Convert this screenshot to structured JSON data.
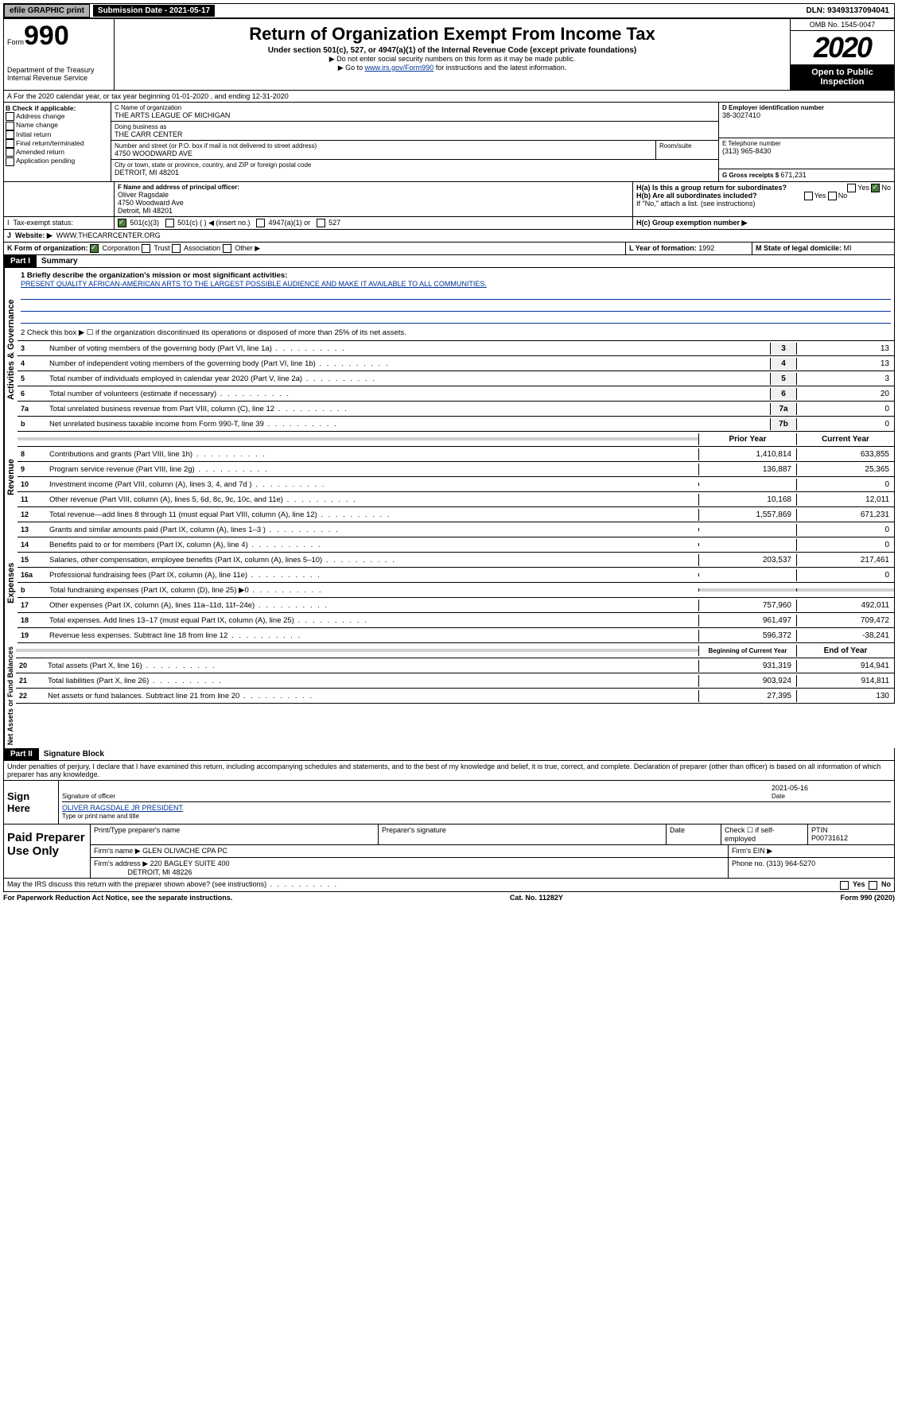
{
  "top": {
    "efile": "efile GRAPHIC print",
    "subDate": "Submission Date - 2021-05-17",
    "dln": "DLN: 93493137094041"
  },
  "header": {
    "formWord": "Form",
    "formNum": "990",
    "dept": "Department of the Treasury\nInternal Revenue Service",
    "title": "Return of Organization Exempt From Income Tax",
    "sub": "Under section 501(c), 527, or 4947(a)(1) of the Internal Revenue Code (except private foundations)",
    "note1": "▶ Do not enter social security numbers on this form as it may be made public.",
    "note2a": "▶ Go to ",
    "note2link": "www.irs.gov/Form990",
    "note2b": " for instructions and the latest information.",
    "omb": "OMB No. 1545-0047",
    "year": "2020",
    "openPub": "Open to Public Inspection"
  },
  "periodA": "A For the 2020 calendar year, or tax year beginning 01-01-2020   , and ending 12-31-2020",
  "boxB": {
    "title": "B Check if applicable:",
    "items": [
      "Address change",
      "Name change",
      "Initial return",
      "Final return/terminated",
      "Amended return",
      "Application pending"
    ]
  },
  "boxC": {
    "nameLbl": "C Name of organization",
    "name": "THE ARTS LEAGUE OF MICHIGAN",
    "dbaLbl": "Doing business as",
    "dba": "THE CARR CENTER",
    "addrLbl": "Number and street (or P.O. box if mail is not delivered to street address)",
    "roomLbl": "Room/suite",
    "addr": "4750 WOODWARD AVE",
    "cityLbl": "City or town, state or province, country, and ZIP or foreign postal code",
    "city": "DETROIT, MI  48201"
  },
  "boxD": {
    "lbl": "D Employer identification number",
    "val": "38-3027410"
  },
  "boxE": {
    "lbl": "E Telephone number",
    "val": "(313) 965-8430"
  },
  "boxG": {
    "lbl": "G Gross receipts $ ",
    "val": "671,231"
  },
  "boxF": {
    "lbl": "F Name and address of principal officer:",
    "name": "Oliver Ragsdale",
    "addr": "4750 Woodward Ave",
    "city": "Detroit, MI  48201"
  },
  "boxH": {
    "ha": "H(a)  Is this a group return for subordinates?",
    "hb": "H(b)  Are all subordinates included?",
    "hbNote": "If \"No,\" attach a list. (see instructions)",
    "hc": "H(c)  Group exemption number ▶",
    "yes": "Yes",
    "no": "No"
  },
  "boxI": {
    "lbl": "Tax-exempt status:",
    "opts": [
      "501(c)(3)",
      "501(c) (  ) ◀ (insert no.)",
      "4947(a)(1) or",
      "527"
    ]
  },
  "boxJ": {
    "lbl": "Website: ▶",
    "val": "WWW.THECARRCENTER.ORG"
  },
  "boxK": {
    "lbl": "K Form of organization:",
    "opts": [
      "Corporation",
      "Trust",
      "Association",
      "Other ▶"
    ]
  },
  "boxL": {
    "lbl": "L Year of formation: ",
    "val": "1992"
  },
  "boxM": {
    "lbl": "M State of legal domicile: ",
    "val": "MI"
  },
  "part1": {
    "hdr": "Part I",
    "title": "Summary",
    "l1lbl": "1  Briefly describe the organization's mission or most significant activities:",
    "l1val": "PRESENT QUALITY AFRICAN-AMERICAN ARTS TO THE LARGEST POSSIBLE AUDIENCE AND MAKE IT AVAILABLE TO ALL COMMUNITIES.",
    "l2": "2   Check this box ▶ ☐  if the organization discontinued its operations or disposed of more than 25% of its net assets."
  },
  "vert": {
    "gov": "Activities & Governance",
    "rev": "Revenue",
    "exp": "Expenses",
    "net": "Net Assets or Fund Balances"
  },
  "govLines": [
    {
      "n": "3",
      "t": "Number of voting members of the governing body (Part VI, line 1a)",
      "b": "3",
      "v": "13"
    },
    {
      "n": "4",
      "t": "Number of independent voting members of the governing body (Part VI, line 1b)",
      "b": "4",
      "v": "13"
    },
    {
      "n": "5",
      "t": "Total number of individuals employed in calendar year 2020 (Part V, line 2a)",
      "b": "5",
      "v": "3"
    },
    {
      "n": "6",
      "t": "Total number of volunteers (estimate if necessary)",
      "b": "6",
      "v": "20"
    },
    {
      "n": "7a",
      "t": "Total unrelated business revenue from Part VIII, column (C), line 12",
      "b": "7a",
      "v": "0"
    },
    {
      "n": "b",
      "t": "Net unrelated business taxable income from Form 990-T, line 39",
      "b": "7b",
      "v": "0"
    }
  ],
  "colHdr": {
    "prior": "Prior Year",
    "curr": "Current Year"
  },
  "revLines": [
    {
      "n": "8",
      "t": "Contributions and grants (Part VIII, line 1h)",
      "p": "1,410,814",
      "c": "633,855"
    },
    {
      "n": "9",
      "t": "Program service revenue (Part VIII, line 2g)",
      "p": "136,887",
      "c": "25,365"
    },
    {
      "n": "10",
      "t": "Investment income (Part VIII, column (A), lines 3, 4, and 7d )",
      "p": "",
      "c": "0"
    },
    {
      "n": "11",
      "t": "Other revenue (Part VIII, column (A), lines 5, 6d, 8c, 9c, 10c, and 11e)",
      "p": "10,168",
      "c": "12,011"
    },
    {
      "n": "12",
      "t": "Total revenue—add lines 8 through 11 (must equal Part VIII, column (A), line 12)",
      "p": "1,557,869",
      "c": "671,231"
    }
  ],
  "expLines": [
    {
      "n": "13",
      "t": "Grants and similar amounts paid (Part IX, column (A), lines 1–3 )",
      "p": "",
      "c": "0"
    },
    {
      "n": "14",
      "t": "Benefits paid to or for members (Part IX, column (A), line 4)",
      "p": "",
      "c": "0"
    },
    {
      "n": "15",
      "t": "Salaries, other compensation, employee benefits (Part IX, column (A), lines 5–10)",
      "p": "203,537",
      "c": "217,461"
    },
    {
      "n": "16a",
      "t": "Professional fundraising fees (Part IX, column (A), line 11e)",
      "p": "",
      "c": "0"
    },
    {
      "n": "b",
      "t": "Total fundraising expenses (Part IX, column (D), line 25) ▶0",
      "p": "gray",
      "c": "gray"
    },
    {
      "n": "17",
      "t": "Other expenses (Part IX, column (A), lines 11a–11d, 11f–24e)",
      "p": "757,960",
      "c": "492,011"
    },
    {
      "n": "18",
      "t": "Total expenses. Add lines 13–17 (must equal Part IX, column (A), line 25)",
      "p": "961,497",
      "c": "709,472"
    },
    {
      "n": "19",
      "t": "Revenue less expenses. Subtract line 18 from line 12",
      "p": "596,372",
      "c": "-38,241"
    }
  ],
  "netHdr": {
    "beg": "Beginning of Current Year",
    "end": "End of Year"
  },
  "netLines": [
    {
      "n": "20",
      "t": "Total assets (Part X, line 16)",
      "p": "931,319",
      "c": "914,941"
    },
    {
      "n": "21",
      "t": "Total liabilities (Part X, line 26)",
      "p": "903,924",
      "c": "914,811"
    },
    {
      "n": "22",
      "t": "Net assets or fund balances. Subtract line 21 from line 20",
      "p": "27,395",
      "c": "130"
    }
  ],
  "part2": {
    "hdr": "Part II",
    "title": "Signature Block",
    "decl": "Under penalties of perjury, I declare that I have examined this return, including accompanying schedules and statements, and to the best of my knowledge and belief, it is true, correct, and complete. Declaration of preparer (other than officer) is based on all information of which preparer has any knowledge."
  },
  "sign": {
    "lbl": "Sign Here",
    "sigLbl": "Signature of officer",
    "date": "2021-05-16",
    "dateLbl": "Date",
    "name": "OLIVER RAGSDALE JR  PRESIDENT",
    "nameLbl": "Type or print name and title"
  },
  "paid": {
    "lbl": "Paid Preparer Use Only",
    "h1": "Print/Type preparer's name",
    "h2": "Preparer's signature",
    "h3": "Date",
    "h4": "Check ☐ if self-employed",
    "h5": "PTIN",
    "ptin": "P00731612",
    "firmNameLbl": "Firm's name    ▶",
    "firmName": "GLEN OLIVACHE CPA PC",
    "firmEinLbl": "Firm's EIN ▶",
    "firmAddrLbl": "Firm's address ▶",
    "firmAddr": "220 BAGLEY SUITE 400",
    "firmCity": "DETROIT, MI  48226",
    "phoneLbl": "Phone no. ",
    "phone": "(313) 964-5270"
  },
  "discuss": "May the IRS discuss this return with the preparer shown above? (see instructions)",
  "footer": {
    "left": "For Paperwork Reduction Act Notice, see the separate instructions.",
    "mid": "Cat. No. 11282Y",
    "right": "Form 990 (2020)"
  }
}
